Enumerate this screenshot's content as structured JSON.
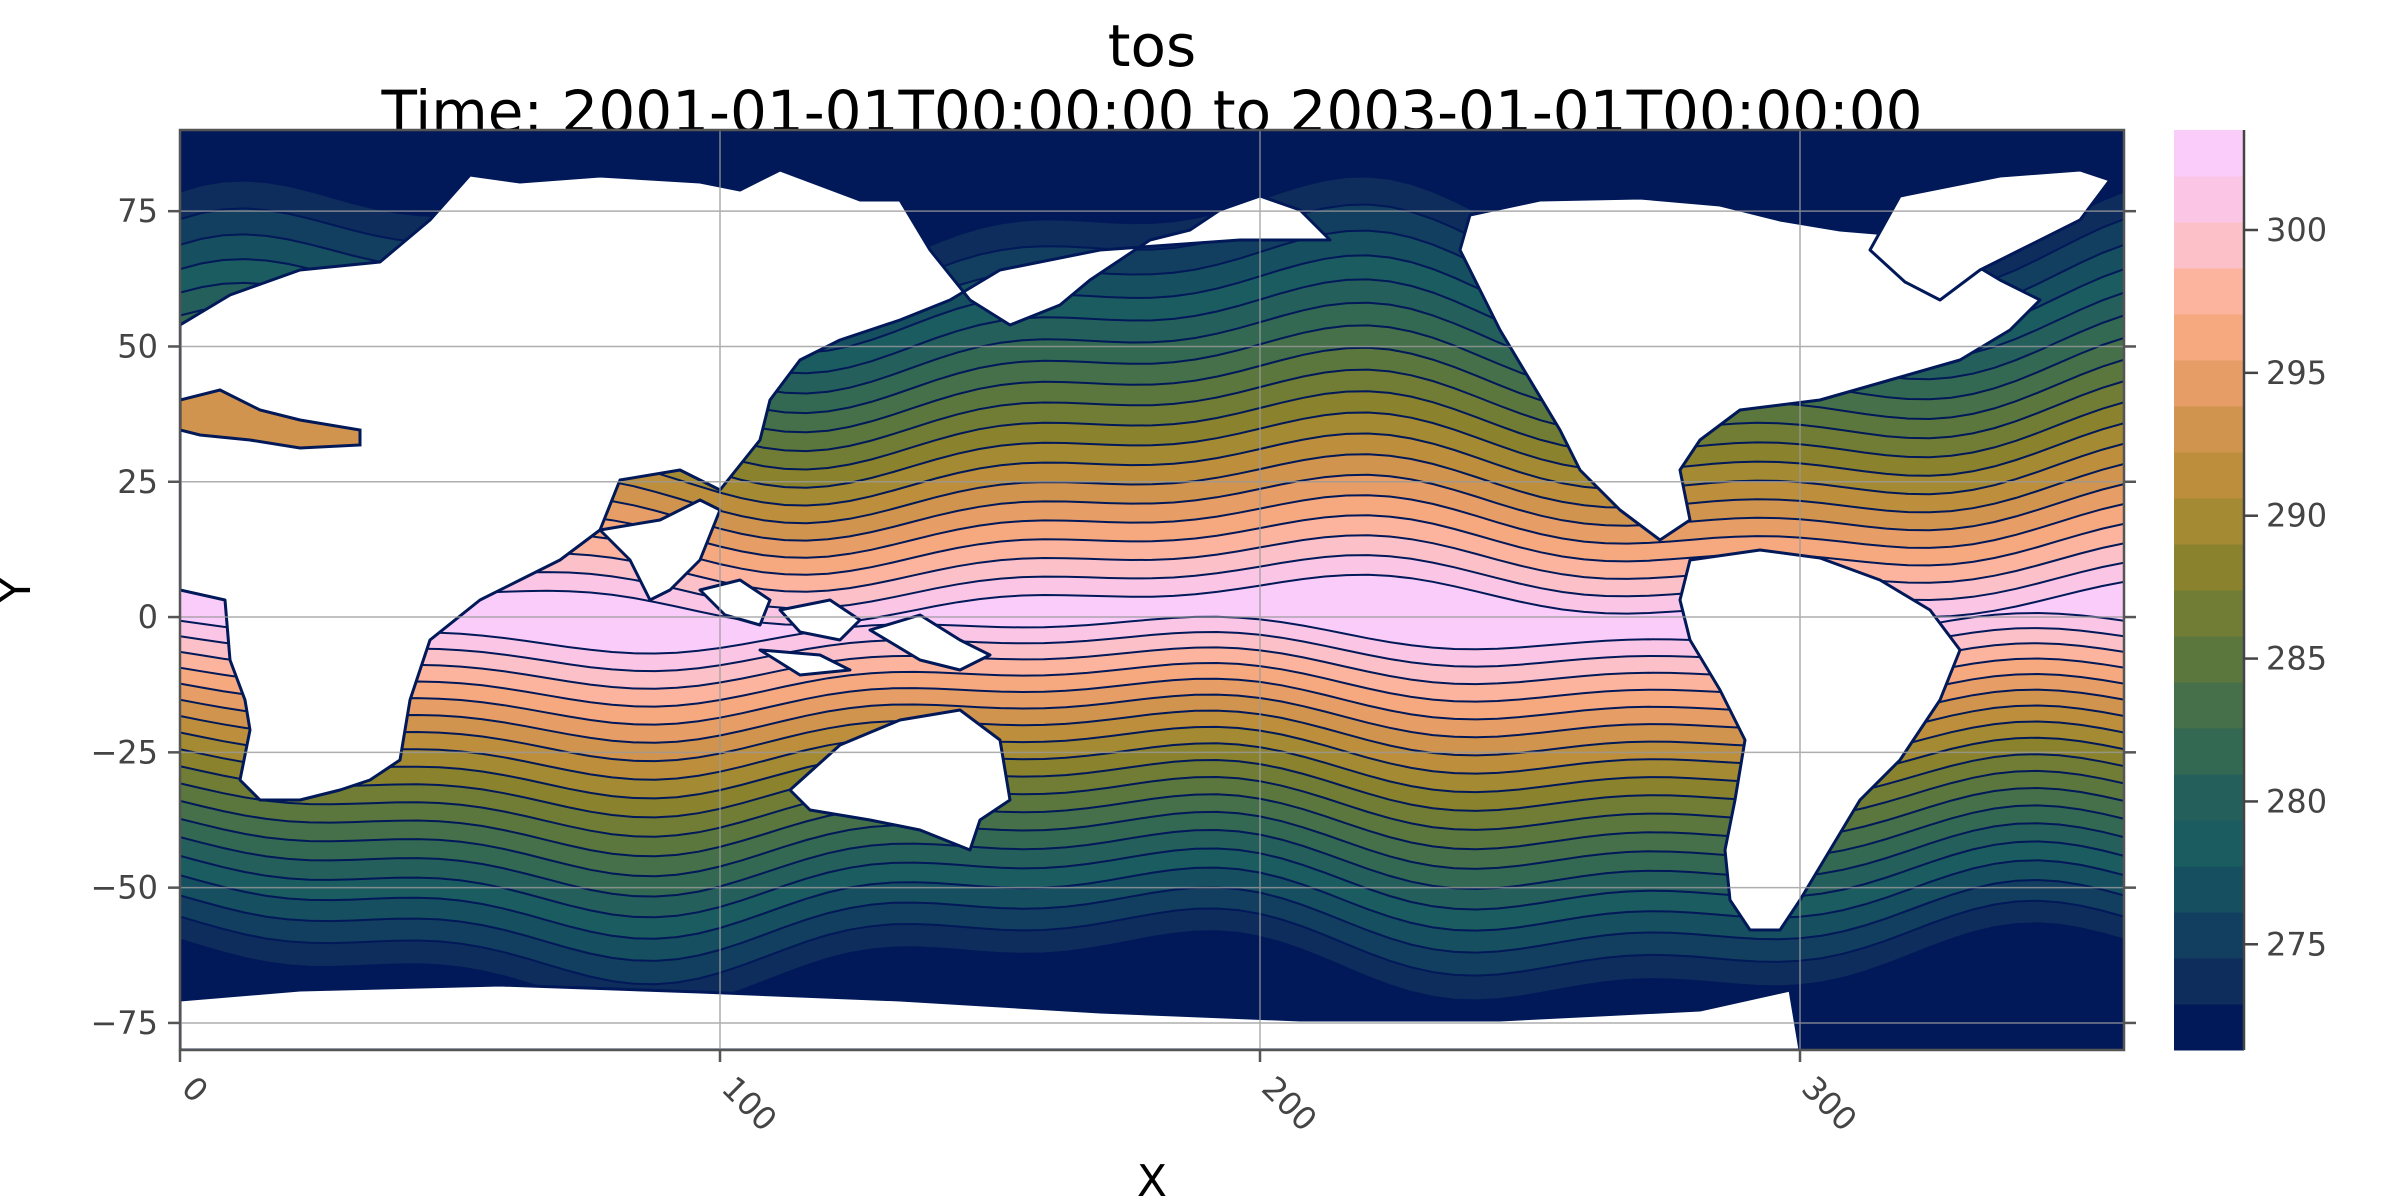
{
  "chart_data": {
    "type": "heatmap",
    "title": "tos",
    "subtitle": "Time: 2001-01-01T00:00:00 to 2003-01-01T00:00:00",
    "xlabel": "X",
    "ylabel": "Y",
    "xlim": [
      0,
      360
    ],
    "ylim": [
      -80,
      90
    ],
    "x_ticks": [
      0,
      100,
      200,
      300
    ],
    "y_ticks": [
      75,
      50,
      25,
      0,
      -25,
      -50,
      -75
    ],
    "grid": true,
    "colorbar": {
      "range": [
        271.3,
        303.5
      ],
      "ticks": [
        275,
        280,
        285,
        290,
        295,
        300
      ],
      "levels": [
        "#011959",
        "#0e2d5c",
        "#123f5f",
        "#164f60",
        "#1b5c61",
        "#245f5c",
        "#336953",
        "#457049",
        "#5b773e",
        "#717d35",
        "#8a822d",
        "#a48a32",
        "#bd8f3c",
        "#d1944e",
        "#e79d66",
        "#f6a87f",
        "#fdb49f",
        "#fcc0c8",
        "#fbc6e6",
        "#f9ccf9"
      ]
    },
    "contour_lines": true,
    "color_pattern": "sea surface temperature field: warmest (~301 K, pink) in the tropical belt, cooling poleward to ~272 K (navy) near the poles; land masked white"
  }
}
